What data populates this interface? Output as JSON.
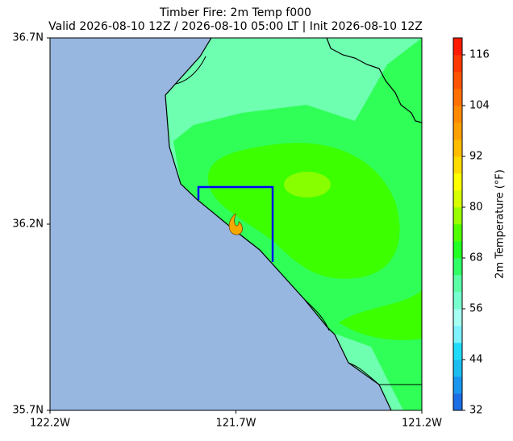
{
  "map": {
    "title": "Timber Fire: 2m Temp f000",
    "subtitle": "Valid 2026-08-10 12Z / 2026-08-10 05:00 LT | Init 2026-08-10 12Z",
    "xlim": [
      -122.2,
      -121.2
    ],
    "ylim": [
      35.7,
      36.7
    ],
    "xticks": [
      {
        "value": -122.2,
        "label": "122.2W"
      },
      {
        "value": -121.7,
        "label": "121.7W"
      },
      {
        "value": -121.2,
        "label": "121.2W"
      }
    ],
    "yticks": [
      {
        "value": 35.7,
        "label": "35.7N"
      },
      {
        "value": 36.2,
        "label": "36.2N"
      },
      {
        "value": 36.7,
        "label": "36.7N"
      }
    ],
    "colorbar": {
      "label": "2m Temperature (°F)",
      "lim": [
        32,
        120
      ],
      "ticks": [
        32,
        44,
        56,
        68,
        80,
        92,
        104,
        116
      ],
      "colors": [
        "#1c6ee6",
        "#1a96f0",
        "#1cbef2",
        "#20dcfa",
        "#7ef2ff",
        "#a6fff2",
        "#78ffd0",
        "#5cffa8",
        "#30ff66",
        "#22ff22",
        "#50ff00",
        "#9aff00",
        "#d8ff00",
        "#ffff00",
        "#ffdc00",
        "#ffbc00",
        "#ffa000",
        "#ff8a00",
        "#ff7000",
        "#ff5400",
        "#ff3800",
        "#ff1a00"
      ]
    }
  }
}
